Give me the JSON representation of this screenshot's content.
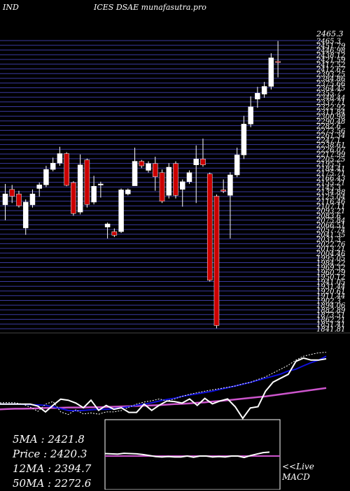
{
  "header": {
    "left": "IND",
    "center": "ICES DSAE munafasutra.pro"
  },
  "stats": {
    "ma5": "5MA : 2421.8",
    "price": "Price  : 2420.3",
    "ma12": "12MA : 2394.7",
    "ma50": "50MA : 2272.6"
  },
  "macd_label": {
    "line1": "<<Live",
    "line2": "MACD"
  },
  "colors": {
    "background": "#000000",
    "grid": "#3a3aa0",
    "bull": "#ffffff",
    "bear": "#cc0000",
    "ma_blue": "#1010dd",
    "ma_magenta": "#cc55cc"
  },
  "chart_data": {
    "type": "candlestick",
    "price_top_label": "2465.3",
    "ylim": [
      1831,
      2466
    ],
    "grid_ticks": [
      "2465.3",
      "2451.79",
      "2446.98",
      "2438.12",
      "2421.59",
      "2417.52",
      "2412.67",
      "2393.25",
      "2384.86",
      "2375.66",
      "2364.45",
      "2355.7",
      "2348.44",
      "2337.71",
      "2322.92",
      "2311.84",
      "2300.98",
      "2290.48",
      "2282.6",
      "2273.56",
      "2261.34",
      "2247.1",
      "2238.61",
      "2226.07",
      "2217.99",
      "2205.25",
      "2195.5",
      "2184.41",
      "2175.71",
      "2166.43",
      "2155.21",
      "2145.3",
      "2134.88",
      "2125.04",
      "2116.46",
      "2107.11",
      "2093.21",
      "2083.6",
      "2075.84",
      "2066.51",
      "2057.74",
      "2041.35",
      "2031.3",
      "2022.76",
      "2013.21",
      "2004.46",
      "1995.05",
      "1984.22",
      "1969.32",
      "1960.29",
      "1950.12",
      "1941.05",
      "1931.44",
      "1920.61",
      "1911.44",
      "1902.3",
      "1894.06",
      "1882.89",
      "1873.51",
      "1862.21",
      "1851.41",
      "1841.81"
    ],
    "candles": [
      {
        "o": 2104,
        "c": 2128,
        "h": 2150,
        "l": 2070
      },
      {
        "o": 2138,
        "c": 2123,
        "h": 2148,
        "l": 2108
      },
      {
        "o": 2128,
        "c": 2102,
        "h": 2135,
        "l": 2098
      },
      {
        "o": 2053,
        "c": 2110,
        "h": 2116,
        "l": 2038
      },
      {
        "o": 2104,
        "c": 2128,
        "h": 2138,
        "l": 2098
      },
      {
        "o": 2140,
        "c": 2148,
        "h": 2153,
        "l": 2122
      },
      {
        "o": 2148,
        "c": 2182,
        "h": 2190,
        "l": 2143
      },
      {
        "o": 2182,
        "c": 2196,
        "h": 2208,
        "l": 2178
      },
      {
        "o": 2196,
        "c": 2217,
        "h": 2232,
        "l": 2190
      },
      {
        "o": 2217,
        "c": 2147,
        "h": 2220,
        "l": 2145
      },
      {
        "o": 2153,
        "c": 2085,
        "h": 2156,
        "l": 2080
      },
      {
        "o": 2088,
        "c": 2192,
        "h": 2215,
        "l": 2083
      },
      {
        "o": 2203,
        "c": 2105,
        "h": 2206,
        "l": 2098
      },
      {
        "o": 2110,
        "c": 2145,
        "h": 2168,
        "l": 2105
      },
      {
        "o": 2148,
        "c": 2150,
        "h": 2155,
        "l": 2120
      },
      {
        "o": 2055,
        "c": 2062,
        "h": 2065,
        "l": 2030
      },
      {
        "o": 2045,
        "c": 2037,
        "h": 2052,
        "l": 2033
      },
      {
        "o": 2045,
        "c": 2137,
        "h": 2140,
        "l": 2042
      },
      {
        "o": 2128,
        "c": 2137,
        "h": 2140,
        "l": 2125
      },
      {
        "o": 2146,
        "c": 2200,
        "h": 2230,
        "l": 2146
      },
      {
        "o": 2200,
        "c": 2190,
        "h": 2203,
        "l": 2185
      },
      {
        "o": 2180,
        "c": 2195,
        "h": 2200,
        "l": 2175
      },
      {
        "o": 2195,
        "c": 2166,
        "h": 2210,
        "l": 2135
      },
      {
        "o": 2175,
        "c": 2112,
        "h": 2182,
        "l": 2108
      },
      {
        "o": 2125,
        "c": 2187,
        "h": 2196,
        "l": 2118
      },
      {
        "o": 2195,
        "c": 2125,
        "h": 2200,
        "l": 2118
      },
      {
        "o": 2138,
        "c": 2155,
        "h": 2160,
        "l": 2100
      },
      {
        "o": 2155,
        "c": 2175,
        "h": 2180,
        "l": 2150
      },
      {
        "o": 2192,
        "c": 2205,
        "h": 2235,
        "l": 2108
      },
      {
        "o": 2205,
        "c": 2192,
        "h": 2250,
        "l": 2188
      },
      {
        "o": 2172,
        "c": 1938,
        "h": 2175,
        "l": 1935
      },
      {
        "o": 2123,
        "c": 1838,
        "h": 2127,
        "l": 1832
      },
      {
        "o": 2137,
        "c": 2134,
        "h": 2160,
        "l": 2130
      },
      {
        "o": 2125,
        "c": 2170,
        "h": 2176,
        "l": 2030
      },
      {
        "o": 2170,
        "c": 2214,
        "h": 2230,
        "l": 2165
      },
      {
        "o": 2214,
        "c": 2282,
        "h": 2300,
        "l": 2205
      },
      {
        "o": 2282,
        "c": 2320,
        "h": 2343,
        "l": 2275
      },
      {
        "o": 2337,
        "c": 2350,
        "h": 2364,
        "l": 2318
      },
      {
        "o": 2348,
        "c": 2365,
        "h": 2375,
        "l": 2340
      },
      {
        "o": 2365,
        "c": 2428,
        "h": 2438,
        "l": 2358
      },
      {
        "o": 2420,
        "c": 2418,
        "h": 2465,
        "l": 2385
      }
    ],
    "ma_blue": [
      2040,
      2040,
      2040,
      2039,
      2038,
      2037,
      2035,
      2030,
      2023,
      2016,
      2014,
      2016,
      2018,
      2020,
      2020,
      2023,
      2026,
      2030,
      2036,
      2040,
      2045,
      2052,
      2058,
      2063,
      2070,
      2075,
      2080,
      2085,
      2090,
      2097,
      2103,
      2110,
      2117,
      2124,
      2132,
      2140,
      2148,
      2156,
      2168,
      2175,
      2188,
      2200,
      2210,
      2225
    ],
    "ma_magenta": [
      2020,
      2021,
      2022,
      2022,
      2023,
      2024,
      2025,
      2025,
      2026,
      2027,
      2027,
      2027,
      2028,
      2028,
      2029,
      2030,
      2031,
      2032,
      2033,
      2034,
      2035,
      2036,
      2038,
      2040,
      2041,
      2043,
      2045,
      2047,
      2050,
      2052,
      2055,
      2058,
      2061,
      2064,
      2067,
      2070,
      2074,
      2078,
      2082,
      2086,
      2090,
      2094,
      2098,
      2102
    ],
    "ma_white": [
      2045,
      2046,
      2045,
      2040,
      2028,
      2012,
      2040,
      2050,
      2010,
      2000,
      2018,
      2002,
      2006,
      2001,
      2010,
      2010,
      2015,
      2028,
      2040,
      2048,
      2053,
      2060,
      2052,
      2060,
      2070,
      2078,
      2084,
      2090,
      2095,
      2100,
      2105,
      2110,
      2118,
      2124,
      2135,
      2145,
      2160,
      2175,
      2190,
      2210,
      2225,
      2232,
      2238,
      2240
    ],
    "indicator_white": [
      2040,
      2040,
      2040,
      2040,
      2040,
      2032,
      2010,
      2036,
      2059,
      2055,
      2044,
      2026,
      2055,
      2016,
      2035,
      2020,
      2026,
      2008,
      2008,
      2040,
      2016,
      2036,
      2052,
      2050,
      2044,
      2060,
      2035,
      2062,
      2041,
      2052,
      2060,
      2030,
      1985,
      2025,
      2030,
      2090,
      2125,
      2140,
      2155,
      2205,
      2218,
      2210,
      2210,
      2215
    ],
    "macd": {
      "ylim": [
        -1,
        1
      ],
      "zero": 0,
      "series": [
        0.25,
        0.22,
        0.2,
        0.28,
        0.25,
        0.22,
        0.15,
        0.05,
        -0.05,
        -0.1,
        -0.05,
        -0.1,
        -0.1,
        0.0,
        -0.12,
        0.0,
        0.0,
        -0.1,
        -0.05,
        -0.1,
        0.0,
        0.0,
        -0.15,
        0.05,
        0.2,
        0.35,
        0.4
      ]
    }
  }
}
